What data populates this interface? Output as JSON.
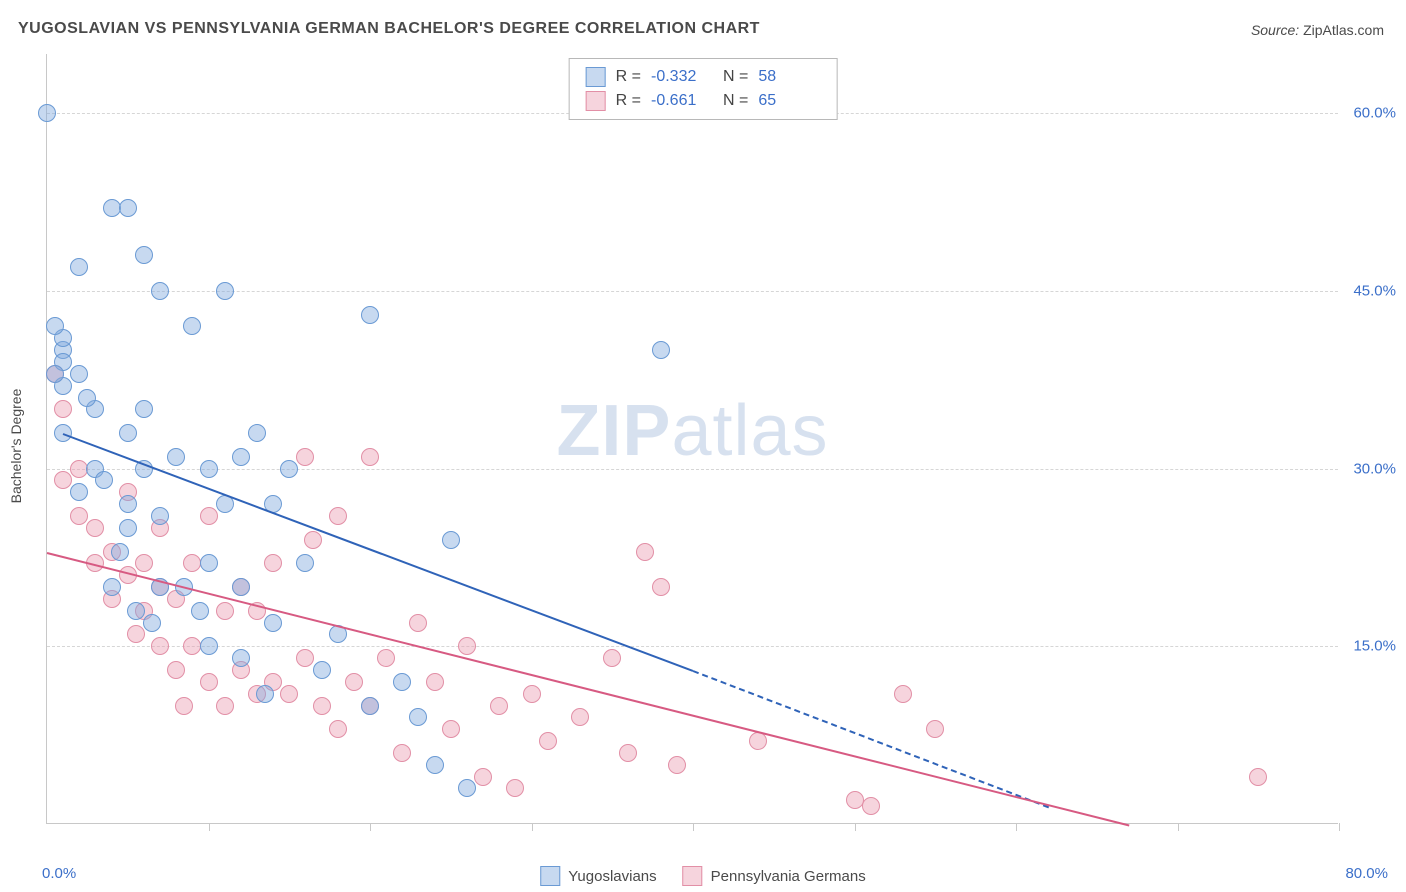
{
  "title": "YUGOSLAVIAN VS PENNSYLVANIA GERMAN BACHELOR'S DEGREE CORRELATION CHART",
  "source_label": "Source:",
  "source_value": "ZipAtlas.com",
  "y_axis_label": "Bachelor's Degree",
  "watermark_zip": "ZIP",
  "watermark_atlas": "atlas",
  "chart": {
    "type": "scatter",
    "xlim": [
      0,
      80
    ],
    "ylim": [
      0,
      65
    ],
    "x_ticks": [
      0,
      10,
      20,
      30,
      40,
      50,
      60,
      70,
      80
    ],
    "y_gridlines": [
      15,
      30,
      45,
      60
    ],
    "y_tick_labels": [
      "15.0%",
      "30.0%",
      "45.0%",
      "60.0%"
    ],
    "x_min_label": "0.0%",
    "x_max_label": "80.0%",
    "background_color": "#ffffff",
    "grid_color": "#d6d6d6",
    "axis_color": "#c8c8c8",
    "tick_label_color": "#3b6fc9",
    "marker_radius": 9,
    "marker_stroke_width": 1.5,
    "trend_line_width": 2,
    "series": {
      "yugoslavians": {
        "label": "Yugoslavians",
        "fill": "rgba(130,170,222,0.45)",
        "stroke": "#6a9ad4",
        "line": "#2f63b8",
        "R": "-0.332",
        "N": "58",
        "trend": {
          "x1": 1,
          "y1": 33,
          "x2": 40,
          "y2": 13,
          "dash_to_x": 62,
          "dash_to_y": 1.5
        },
        "points": [
          [
            0,
            60
          ],
          [
            1,
            40
          ],
          [
            1,
            41
          ],
          [
            1,
            39
          ],
          [
            1,
            37
          ],
          [
            1,
            33
          ],
          [
            2,
            28
          ],
          [
            2,
            47
          ],
          [
            2,
            38
          ],
          [
            3,
            35
          ],
          [
            3,
            30
          ],
          [
            4,
            52
          ],
          [
            5,
            52
          ],
          [
            5,
            33
          ],
          [
            5,
            27
          ],
          [
            4,
            20
          ],
          [
            5,
            25
          ],
          [
            6,
            48
          ],
          [
            6,
            35
          ],
          [
            6,
            30
          ],
          [
            7,
            45
          ],
          [
            7,
            26
          ],
          [
            7,
            20
          ],
          [
            8,
            31
          ],
          [
            9,
            42
          ],
          [
            10,
            30
          ],
          [
            10,
            22
          ],
          [
            10,
            15
          ],
          [
            11,
            45
          ],
          [
            11,
            27
          ],
          [
            12,
            31
          ],
          [
            12,
            20
          ],
          [
            12,
            14
          ],
          [
            13,
            33
          ],
          [
            14,
            27
          ],
          [
            14,
            17
          ],
          [
            15,
            30
          ],
          [
            16,
            22
          ],
          [
            17,
            13
          ],
          [
            18,
            16
          ],
          [
            20,
            43
          ],
          [
            20,
            10
          ],
          [
            22,
            12
          ],
          [
            23,
            9
          ],
          [
            24,
            5
          ],
          [
            25,
            24
          ],
          [
            26,
            3
          ],
          [
            38,
            40
          ],
          [
            0.5,
            42
          ],
          [
            0.5,
            38
          ],
          [
            2.5,
            36
          ],
          [
            3.5,
            29
          ],
          [
            4.5,
            23
          ],
          [
            5.5,
            18
          ],
          [
            6.5,
            17
          ],
          [
            8.5,
            20
          ],
          [
            9.5,
            18
          ],
          [
            13.5,
            11
          ]
        ]
      },
      "penn_germans": {
        "label": "Pennsylvania Germans",
        "fill": "rgba(235,160,180,0.45)",
        "stroke": "#e28fa6",
        "line": "#d75a82",
        "R": "-0.661",
        "N": "65",
        "trend": {
          "x1": 0,
          "y1": 23,
          "x2": 67,
          "y2": 0
        },
        "points": [
          [
            0.5,
            38
          ],
          [
            1,
            35
          ],
          [
            1,
            29
          ],
          [
            2,
            30
          ],
          [
            2,
            26
          ],
          [
            3,
            25
          ],
          [
            3,
            22
          ],
          [
            4,
            23
          ],
          [
            4,
            19
          ],
          [
            5,
            28
          ],
          [
            5,
            21
          ],
          [
            6,
            22
          ],
          [
            6,
            18
          ],
          [
            7,
            25
          ],
          [
            7,
            20
          ],
          [
            7,
            15
          ],
          [
            8,
            19
          ],
          [
            8,
            13
          ],
          [
            9,
            22
          ],
          [
            9,
            15
          ],
          [
            10,
            26
          ],
          [
            10,
            12
          ],
          [
            11,
            18
          ],
          [
            11,
            10
          ],
          [
            12,
            20
          ],
          [
            12,
            13
          ],
          [
            13,
            18
          ],
          [
            13,
            11
          ],
          [
            14,
            22
          ],
          [
            14,
            12
          ],
          [
            15,
            11
          ],
          [
            16,
            31
          ],
          [
            16,
            14
          ],
          [
            17,
            10
          ],
          [
            18,
            26
          ],
          [
            18,
            8
          ],
          [
            19,
            12
          ],
          [
            20,
            31
          ],
          [
            20,
            10
          ],
          [
            21,
            14
          ],
          [
            22,
            6
          ],
          [
            23,
            17
          ],
          [
            24,
            12
          ],
          [
            25,
            8
          ],
          [
            26,
            15
          ],
          [
            27,
            4
          ],
          [
            28,
            10
          ],
          [
            29,
            3
          ],
          [
            30,
            11
          ],
          [
            31,
            7
          ],
          [
            33,
            9
          ],
          [
            35,
            14
          ],
          [
            36,
            6
          ],
          [
            37,
            23
          ],
          [
            38,
            20
          ],
          [
            39,
            5
          ],
          [
            44,
            7
          ],
          [
            50,
            2
          ],
          [
            51,
            1.5
          ],
          [
            53,
            11
          ],
          [
            55,
            8
          ],
          [
            75,
            4
          ],
          [
            16.5,
            24
          ],
          [
            5.5,
            16
          ],
          [
            8.5,
            10
          ]
        ]
      }
    }
  },
  "legend_top": {
    "r_label": "R =",
    "n_label": "N ="
  }
}
